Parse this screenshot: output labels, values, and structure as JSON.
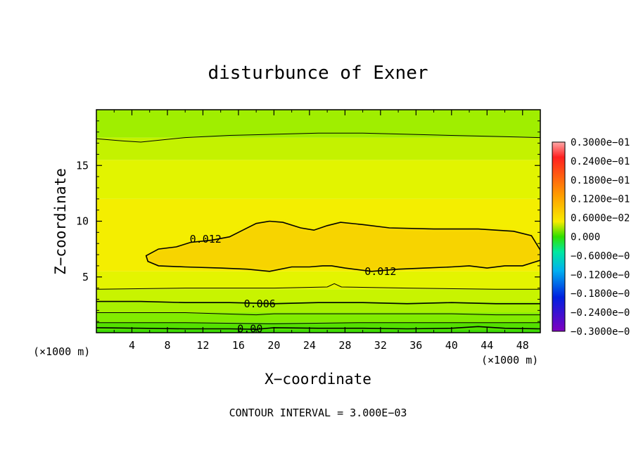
{
  "chart_data": {
    "type": "heatmap",
    "title": "disturbunce of Exner",
    "xlabel": "X−coordinate",
    "ylabel": "Z−coordinate",
    "x_unit": "(×1000 m)",
    "y_unit": "(×1000 m)",
    "xlim": [
      0,
      50
    ],
    "ylim": [
      0,
      20
    ],
    "x_ticks": [
      4,
      8,
      12,
      16,
      20,
      24,
      28,
      32,
      36,
      40,
      44,
      48
    ],
    "x_tick_labels": [
      "4",
      "8",
      "12",
      "16",
      "20",
      "24",
      "28",
      "32",
      "36",
      "40",
      "44",
      "48"
    ],
    "y_ticks": [
      5,
      10,
      15
    ],
    "y_tick_labels": [
      "5",
      "10",
      "15"
    ],
    "contour_interval_text": "CONTOUR INTERVAL = 3.000E−03",
    "contour_interval": 0.003,
    "colorbar": {
      "vmin": -0.03,
      "vmax": 0.03,
      "labels": [
        "0.3000e−01",
        "0.2400e−01",
        "0.1800e−01",
        "0.1200e−01",
        "0.6000e−02",
        "0.000",
        "−0.6000e−0",
        "−0.1200e−0",
        "−0.1800e−0",
        "−0.2400e−0",
        "−0.3000e−0"
      ]
    },
    "contour_labels": [
      {
        "text": "0.012",
        "x": 12.3,
        "y": 8.4
      },
      {
        "text": "0.012",
        "x": 32.0,
        "y": 5.5
      },
      {
        "text": "0.006",
        "x": 18.4,
        "y": 2.6
      },
      {
        "text": "0.00",
        "x": 17.3,
        "y": 0.35
      }
    ],
    "contours": [
      {
        "level": 0.012,
        "closed": true,
        "points": [
          [
            5.6,
            6.9
          ],
          [
            7,
            7.5
          ],
          [
            9,
            7.7
          ],
          [
            10.6,
            8.1
          ],
          [
            13,
            8.3
          ],
          [
            15,
            8.6
          ],
          [
            16.5,
            9.2
          ],
          [
            18,
            9.8
          ],
          [
            19.5,
            10.0
          ],
          [
            21,
            9.9
          ],
          [
            23,
            9.4
          ],
          [
            24.5,
            9.2
          ],
          [
            26,
            9.6
          ],
          [
            27.5,
            9.9
          ],
          [
            30,
            9.7
          ],
          [
            33,
            9.4
          ],
          [
            38,
            9.3
          ],
          [
            43,
            9.3
          ],
          [
            47,
            9.1
          ],
          [
            49,
            8.7
          ],
          [
            50,
            7.4
          ],
          [
            50,
            6.5
          ],
          [
            48,
            6.0
          ],
          [
            46,
            6.0
          ],
          [
            44,
            5.8
          ],
          [
            42,
            6.0
          ],
          [
            40,
            5.9
          ],
          [
            37,
            5.8
          ],
          [
            34,
            5.7
          ],
          [
            31,
            5.5
          ],
          [
            28,
            5.8
          ],
          [
            26.5,
            6.0
          ],
          [
            25.5,
            6.0
          ],
          [
            24,
            5.9
          ],
          [
            22,
            5.9
          ],
          [
            19.5,
            5.5
          ],
          [
            17,
            5.7
          ],
          [
            14,
            5.8
          ],
          [
            10,
            5.9
          ],
          [
            7,
            6.0
          ],
          [
            5.8,
            6.4
          ],
          [
            5.6,
            6.9
          ]
        ]
      },
      {
        "level": 0.006,
        "closed": false,
        "points": [
          [
            0,
            2.8
          ],
          [
            5,
            2.8
          ],
          [
            10,
            2.7
          ],
          [
            15,
            2.7
          ],
          [
            20,
            2.6
          ],
          [
            25,
            2.7
          ],
          [
            30,
            2.7
          ],
          [
            35,
            2.6
          ],
          [
            40,
            2.7
          ],
          [
            45,
            2.6
          ],
          [
            50,
            2.6
          ]
        ]
      },
      {
        "level": 0.0,
        "closed": false,
        "points": [
          [
            0,
            0.45
          ],
          [
            5,
            0.4
          ],
          [
            10,
            0.35
          ],
          [
            15,
            0.35
          ],
          [
            18,
            0.3
          ],
          [
            20,
            0.45
          ],
          [
            25,
            0.4
          ],
          [
            30,
            0.4
          ],
          [
            35,
            0.35
          ],
          [
            40,
            0.4
          ],
          [
            43,
            0.55
          ],
          [
            46,
            0.4
          ],
          [
            50,
            0.35
          ]
        ]
      },
      {
        "level": 0.003,
        "closed": false,
        "points": [
          [
            0,
            17.4
          ],
          [
            3,
            17.2
          ],
          [
            5,
            17.1
          ],
          [
            10,
            17.5
          ],
          [
            15,
            17.7
          ],
          [
            20,
            17.8
          ],
          [
            25,
            17.9
          ],
          [
            30,
            17.9
          ],
          [
            35,
            17.8
          ],
          [
            40,
            17.7
          ],
          [
            45,
            17.6
          ],
          [
            50,
            17.5
          ]
        ]
      },
      {
        "level": 0.009,
        "closed": false,
        "points": [
          [
            0,
            3.9
          ],
          [
            10,
            4.0
          ],
          [
            20,
            4.0
          ],
          [
            26,
            4.1
          ],
          [
            26.8,
            4.4
          ],
          [
            27.6,
            4.1
          ],
          [
            35,
            4.0
          ],
          [
            45,
            3.9
          ],
          [
            50,
            3.9
          ]
        ]
      },
      {
        "level": 0.003,
        "closed": false,
        "points": [
          [
            0,
            1.8
          ],
          [
            10,
            1.8
          ],
          [
            18,
            1.6
          ],
          [
            20,
            1.7
          ],
          [
            30,
            1.7
          ],
          [
            40,
            1.7
          ],
          [
            45,
            1.6
          ],
          [
            50,
            1.6
          ]
        ]
      },
      {
        "level": 0.003,
        "closed": false,
        "points": [
          [
            0,
            0.9
          ],
          [
            10,
            0.9
          ],
          [
            20,
            0.8
          ],
          [
            30,
            0.9
          ],
          [
            40,
            0.9
          ],
          [
            50,
            0.9
          ]
        ]
      }
    ],
    "field_bands": [
      {
        "from": 0.0,
        "to": 0.25,
        "color": "#3cd800"
      },
      {
        "from": 0.25,
        "to": 0.9,
        "color": "#54e000"
      },
      {
        "from": 0.9,
        "to": 1.8,
        "color": "#82ec00"
      },
      {
        "from": 1.8,
        "to": 2.8,
        "color": "#a8f000"
      },
      {
        "from": 2.8,
        "to": 3.9,
        "color": "#c8f400"
      },
      {
        "from": 3.9,
        "to": 5.5,
        "color": "#e4f400"
      },
      {
        "from": 5.5,
        "to": 12.0,
        "color": "#f4ee00"
      },
      {
        "from": 12.0,
        "to": 15.5,
        "color": "#e2f400"
      },
      {
        "from": 15.5,
        "to": 17.5,
        "color": "#c4f200"
      },
      {
        "from": 17.5,
        "to": 20.0,
        "color": "#a0ee00"
      }
    ],
    "core_color": "#f8d000",
    "grid": false,
    "legend_position": "right"
  }
}
